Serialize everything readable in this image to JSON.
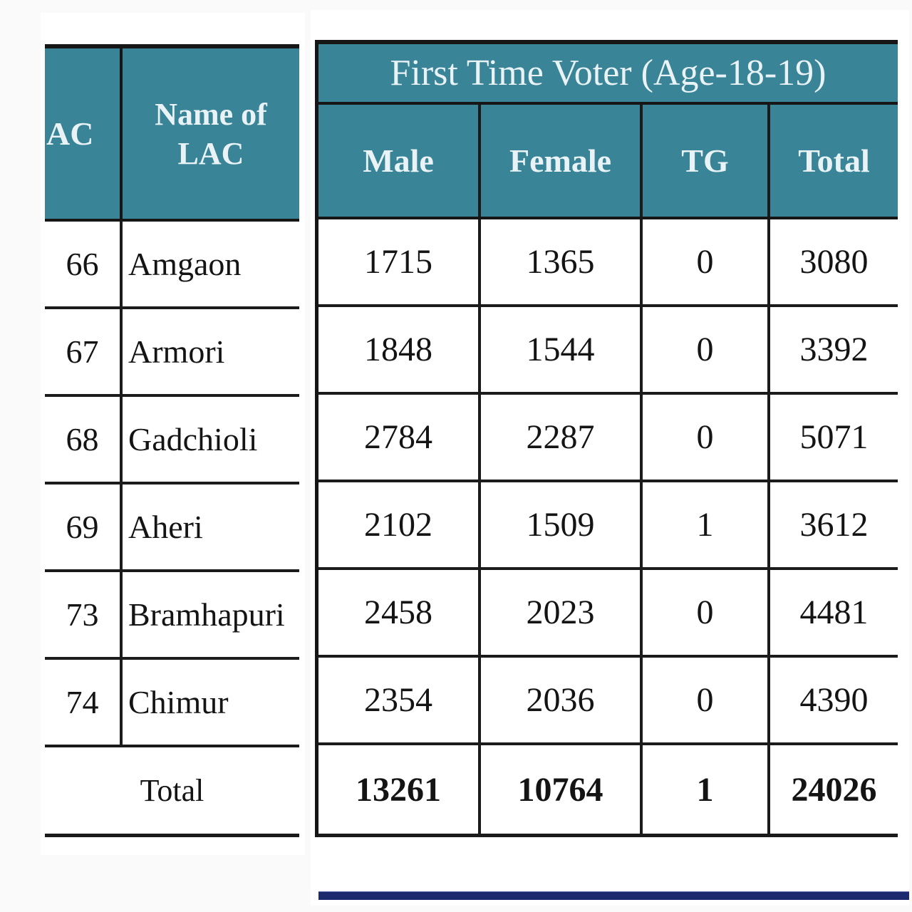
{
  "colors": {
    "header_teal": "#3a8498",
    "grid_line": "#1b1b1b",
    "navy_bar": "#1b2a6e",
    "page_background": "#fafafa",
    "paper_background": "#ffffff",
    "header_text": "#e9f3f6"
  },
  "left_table": {
    "header": {
      "ac": "AC",
      "lac_line1": "Name of",
      "lac_line2": "LAC"
    },
    "rows": [
      {
        "ac": "66",
        "lac": "Amgaon"
      },
      {
        "ac": "67",
        "lac": "Armori"
      },
      {
        "ac": "68",
        "lac": "Gadchioli"
      },
      {
        "ac": "69",
        "lac": "Aheri"
      },
      {
        "ac": "73",
        "lac": "Bramhapuri"
      },
      {
        "ac": "74",
        "lac": "Chimur"
      }
    ],
    "total_label": "Total"
  },
  "right_table": {
    "title": "First Time Voter (Age-18-19)",
    "columns": [
      "Male",
      "Female",
      "TG",
      "Total"
    ],
    "rows": [
      [
        "1715",
        "1365",
        "0",
        "3080"
      ],
      [
        "1848",
        "1544",
        "0",
        "3392"
      ],
      [
        "2784",
        "2287",
        "0",
        "5071"
      ],
      [
        "2102",
        "1509",
        "1",
        "3612"
      ],
      [
        "2458",
        "2023",
        "0",
        "4481"
      ],
      [
        "2354",
        "2036",
        "0",
        "4390"
      ]
    ],
    "totals": [
      "13261",
      "10764",
      "1",
      "24026"
    ]
  }
}
